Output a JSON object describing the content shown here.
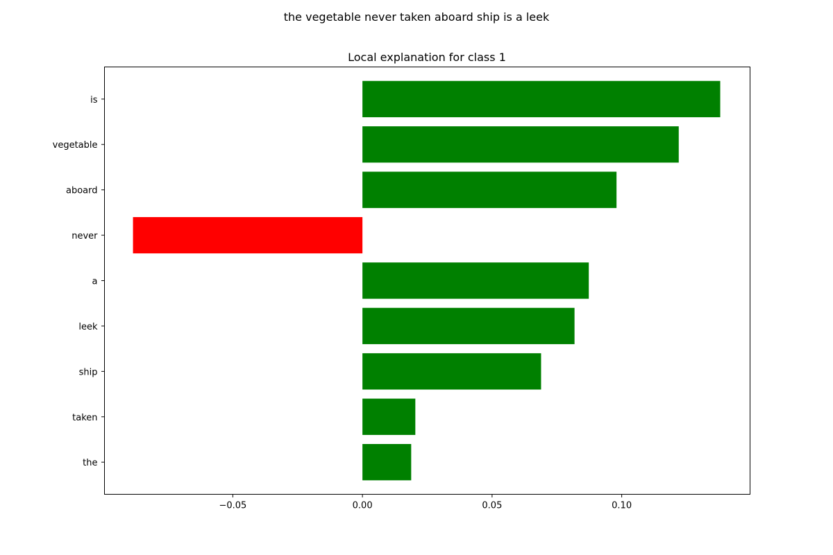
{
  "figure": {
    "suptitle": "the vegetable never taken aboard ship is a leek"
  },
  "chart_data": {
    "type": "bar",
    "orientation": "horizontal",
    "title": "Local explanation for class 1",
    "xlabel": "",
    "ylabel": "",
    "categories": [
      "is",
      "vegetable",
      "aboard",
      "never",
      "a",
      "leek",
      "ship",
      "taken",
      "the"
    ],
    "values": [
      0.138,
      0.122,
      0.098,
      -0.0885,
      0.0873,
      0.0818,
      0.0689,
      0.0204,
      0.0188
    ],
    "xlim": [
      -0.0995,
      0.1495
    ],
    "xticks": [
      -0.05,
      0.0,
      0.05,
      0.1
    ],
    "xtick_labels": [
      "−0.05",
      "0.00",
      "0.05",
      "0.10"
    ],
    "grid": false,
    "colors": {
      "positive": "#008000",
      "negative": "#ff0000"
    }
  }
}
